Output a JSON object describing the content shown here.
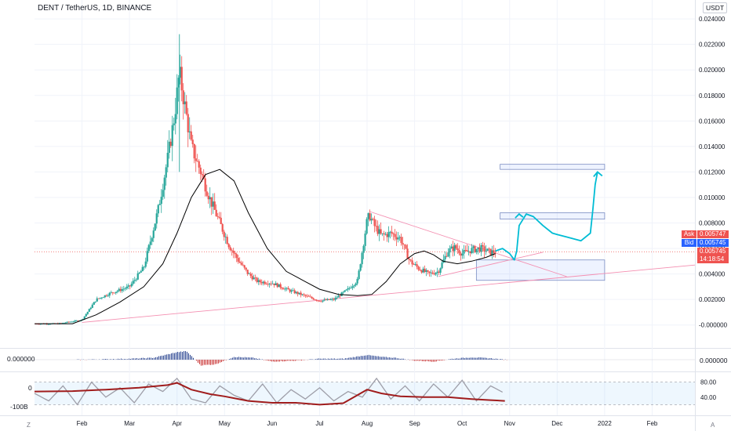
{
  "header": {
    "title": "DENT / TetherUS, 1D, BINANCE",
    "currency": "USDT"
  },
  "colors": {
    "up": "#26a69a",
    "down": "#ef5350",
    "ma": "#000000",
    "trendline": "#f48fb1",
    "drawing": "#00bcd4",
    "ask": "#ef5350",
    "bid": "#2962ff",
    "osc_fast": "#9e9ea8",
    "osc_slow": "#a01c1c"
  },
  "chart_data": {
    "type": "line",
    "ylim": [
      -0.0018,
      0.0245
    ],
    "y_ticks": [
      "0.024000",
      "0.022000",
      "0.020000",
      "0.018000",
      "0.016000",
      "0.014000",
      "0.012000",
      "0.010000",
      "0.008000",
      "0.006000",
      "0.004000",
      "0.002000",
      "-0.000000"
    ],
    "y_tick_values": [
      0.024,
      0.022,
      0.02,
      0.018,
      0.016,
      0.014,
      0.012,
      0.01,
      0.008,
      0.006,
      0.004,
      0.002,
      0.0
    ],
    "x_labels": [
      "Feb",
      "Mar",
      "Apr",
      "May",
      "Jun",
      "Jul",
      "Aug",
      "Sep",
      "Oct",
      "Nov",
      "Dec",
      "2022",
      "Feb"
    ],
    "x_label_values": [
      1.0,
      2.0,
      3.0,
      4.0,
      5.0,
      6.0,
      7.0,
      8.0,
      9.0,
      10.0,
      11.0,
      12.0,
      13.0
    ],
    "xlim": [
      0.0,
      13.9
    ],
    "price_series": {
      "x": [
        0.0,
        0.5,
        1.0,
        1.3,
        1.6,
        2.0,
        2.3,
        2.6,
        2.8,
        2.95,
        3.05,
        3.15,
        3.3,
        3.5,
        3.7,
        3.9,
        4.1,
        4.3,
        4.5,
        4.7,
        5.0,
        5.3,
        5.6,
        6.0,
        6.3,
        6.6,
        6.8,
        7.0,
        7.05,
        7.15,
        7.3,
        7.5,
        7.7,
        7.9,
        8.1,
        8.3,
        8.5,
        8.7,
        8.85,
        9.0,
        9.2,
        9.4,
        9.6,
        9.7
      ],
      "values": [
        0.0001,
        0.0001,
        0.0004,
        0.002,
        0.0025,
        0.003,
        0.0045,
        0.009,
        0.013,
        0.0165,
        0.0198,
        0.0175,
        0.014,
        0.012,
        0.0098,
        0.008,
        0.0062,
        0.005,
        0.004,
        0.0034,
        0.0033,
        0.0028,
        0.0024,
        0.0019,
        0.002,
        0.0028,
        0.0035,
        0.0082,
        0.0086,
        0.0078,
        0.007,
        0.0072,
        0.0068,
        0.005,
        0.0044,
        0.004,
        0.0042,
        0.0058,
        0.0061,
        0.0056,
        0.0059,
        0.006,
        0.0057,
        0.00575
      ]
    },
    "moving_average": {
      "x": [
        0.0,
        0.8,
        1.3,
        1.8,
        2.3,
        2.7,
        3.0,
        3.3,
        3.6,
        3.9,
        4.2,
        4.5,
        4.9,
        5.3,
        5.7,
        6.0,
        6.4,
        6.8,
        7.1,
        7.4,
        7.7,
        8.0,
        8.2,
        8.4,
        8.6,
        8.9,
        9.2,
        9.5,
        9.7
      ],
      "values": [
        0.0001,
        0.0001,
        0.0008,
        0.0018,
        0.003,
        0.0048,
        0.0072,
        0.01,
        0.0118,
        0.0122,
        0.0113,
        0.0088,
        0.006,
        0.0042,
        0.0034,
        0.0028,
        0.0024,
        0.0023,
        0.0024,
        0.0034,
        0.0048,
        0.0056,
        0.0058,
        0.0055,
        0.005,
        0.0048,
        0.005,
        0.0053,
        0.0056
      ]
    },
    "current_price_line": 0.005745,
    "ask": {
      "label": "Ask",
      "value": "0.005747"
    },
    "bid": {
      "label": "Bid",
      "value": "0.005745"
    },
    "last_price": "0.005745",
    "countdown": "14:18:54",
    "trendlines": [
      {
        "x1": 1.0,
        "y1": 0.0002,
        "x2": 13.9,
        "y2": 0.0047
      },
      {
        "x1": 7.05,
        "y1": 0.0089,
        "x2": 11.2,
        "y2": 0.0038
      },
      {
        "x1": 8.5,
        "y1": 0.0038,
        "x2": 10.7,
        "y2": 0.0057
      }
    ],
    "zones": [
      {
        "x1": 9.8,
        "y1": 0.0126,
        "x2": 12.0,
        "y2": 0.0122
      },
      {
        "x1": 9.8,
        "y1": 0.0088,
        "x2": 12.0,
        "y2": 0.0083
      },
      {
        "x1": 9.3,
        "y1": 0.0051,
        "x2": 12.0,
        "y2": 0.0035
      }
    ],
    "projection": {
      "x": [
        9.7,
        9.85,
        10.0,
        10.1,
        10.15,
        10.2,
        10.35,
        10.5,
        10.7,
        10.9,
        11.0,
        11.2,
        11.5,
        11.7,
        11.75,
        11.8,
        11.85
      ],
      "values": [
        0.0058,
        0.006,
        0.0056,
        0.0051,
        0.0058,
        0.0078,
        0.0087,
        0.0085,
        0.0078,
        0.0072,
        0.0071,
        0.0069,
        0.0066,
        0.0072,
        0.009,
        0.011,
        0.012
      ]
    },
    "volume_oscillator": {
      "label": "0.000000",
      "axis_label": "0.000000",
      "x": [
        1.0,
        1.5,
        2.0,
        2.5,
        3.0,
        3.2,
        3.5,
        3.8,
        4.2,
        4.6,
        5.0,
        5.5,
        6.0,
        6.5,
        7.0,
        7.3,
        7.6,
        8.0,
        8.4,
        8.8,
        9.2,
        9.6,
        9.9
      ],
      "values": [
        0.0,
        0.05,
        0.1,
        0.2,
        0.8,
        0.9,
        -0.6,
        -0.5,
        0.3,
        0.2,
        -0.2,
        -0.1,
        0.1,
        0.1,
        0.5,
        0.3,
        0.2,
        -0.1,
        -0.2,
        0.1,
        0.25,
        0.15,
        0.0
      ]
    },
    "stoch_oscillator": {
      "left_labels": [
        "0",
        "-100B"
      ],
      "y_ticks": [
        "80.00",
        "40.00"
      ],
      "y_tick_values": [
        80,
        40
      ],
      "ylim": [
        0,
        100
      ],
      "fast": {
        "x": [
          0.0,
          0.3,
          0.6,
          0.9,
          1.2,
          1.5,
          1.8,
          2.1,
          2.4,
          2.7,
          3.0,
          3.3,
          3.6,
          3.9,
          4.2,
          4.5,
          4.8,
          5.1,
          5.4,
          5.7,
          6.0,
          6.3,
          6.6,
          6.9,
          7.2,
          7.5,
          7.8,
          8.1,
          8.4,
          8.7,
          9.0,
          9.3,
          9.6,
          9.9
        ],
        "values": [
          50,
          30,
          70,
          20,
          80,
          40,
          65,
          25,
          75,
          55,
          90,
          35,
          25,
          70,
          45,
          30,
          75,
          25,
          60,
          35,
          65,
          30,
          55,
          40,
          90,
          35,
          70,
          30,
          75,
          40,
          85,
          30,
          70,
          50
        ]
      },
      "slow": {
        "x": [
          0.0,
          0.8,
          1.5,
          2.2,
          2.8,
          3.0,
          3.3,
          3.7,
          4.0,
          4.5,
          5.0,
          5.5,
          6.0,
          6.5,
          7.0,
          7.3,
          7.7,
          8.2,
          8.7,
          9.2,
          9.6,
          9.9
        ],
        "values": [
          55,
          56,
          60,
          65,
          72,
          78,
          60,
          48,
          42,
          30,
          25,
          25,
          20,
          24,
          60,
          50,
          42,
          40,
          40,
          35,
          32,
          30
        ]
      }
    }
  },
  "footer": {
    "left_icon": "Z",
    "right_icon": "A"
  }
}
